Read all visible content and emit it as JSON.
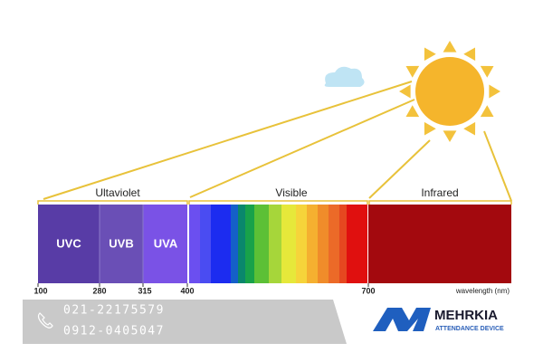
{
  "labels": {
    "ultraviolet": "Ultaviolet",
    "visible": "Visible",
    "infrared": "Infrared"
  },
  "bands": [
    "UVC",
    "UVB",
    "UVA"
  ],
  "wavelengths": [
    "100",
    "280",
    "315",
    "400",
    "700"
  ],
  "axis_unit": "wavelength (nm)",
  "contact": {
    "phones": [
      "021-22175579",
      "0912-0405047"
    ]
  },
  "brand": {
    "name": "MEHRKIA",
    "tagline": "ATTENDANCE DEVICE"
  }
}
